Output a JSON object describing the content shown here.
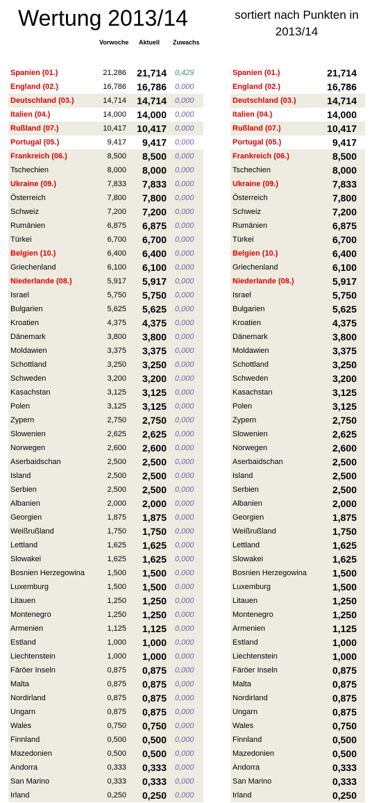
{
  "header": {
    "title": "Wertung 2013/14",
    "subtitle": "sortiert nach Punkten in 2013/14",
    "col_prev": "Vorwoche",
    "col_current": "Aktuell",
    "col_gain": "Zuwachs"
  },
  "colors": {
    "highlight": "#e00000",
    "shade": "#eeece1",
    "gain_zero": "#7060a8",
    "gain_positive": "#2ea050"
  },
  "left_rows": [
    {
      "name": "Spanien (01.)",
      "prev": "21,286",
      "cur": "21,714",
      "gain": "0,429",
      "hl": true,
      "shade": false,
      "up": true
    },
    {
      "name": "England (02.)",
      "prev": "16,786",
      "cur": "16,786",
      "gain": "0,000",
      "hl": true,
      "shade": false
    },
    {
      "name": "Deutschland (03.)",
      "prev": "14,714",
      "cur": "14,714",
      "gain": "0,000",
      "hl": true,
      "shade": true
    },
    {
      "name": "Italien (04.)",
      "prev": "14,000",
      "cur": "14,000",
      "gain": "0,000",
      "hl": true,
      "shade": false
    },
    {
      "name": "Rußland (07.)",
      "prev": "10,417",
      "cur": "10,417",
      "gain": "0,000",
      "hl": true,
      "shade": true
    },
    {
      "name": "Portugal (05.)",
      "prev": "9,417",
      "cur": "9,417",
      "gain": "0,000",
      "hl": true,
      "shade": false
    },
    {
      "name": "Frankreich (06.)",
      "prev": "8,500",
      "cur": "8,500",
      "gain": "0,000",
      "hl": true,
      "shade": true
    },
    {
      "name": "Tschechien",
      "prev": "8,000",
      "cur": "8,000",
      "gain": "0,000",
      "hl": false,
      "shade": true
    },
    {
      "name": "Ukraine (09.)",
      "prev": "7,833",
      "cur": "7,833",
      "gain": "0,000",
      "hl": true,
      "shade": true
    },
    {
      "name": "Österreich",
      "prev": "7,800",
      "cur": "7,800",
      "gain": "0,000",
      "hl": false,
      "shade": true
    },
    {
      "name": "Schweiz",
      "prev": "7,200",
      "cur": "7,200",
      "gain": "0,000",
      "hl": false,
      "shade": true
    },
    {
      "name": "Rumänien",
      "prev": "6,875",
      "cur": "6,875",
      "gain": "0,000",
      "hl": false,
      "shade": true
    },
    {
      "name": "Türkei",
      "prev": "6,700",
      "cur": "6,700",
      "gain": "0,000",
      "hl": false,
      "shade": true
    },
    {
      "name": "Belgien (10.)",
      "prev": "6,400",
      "cur": "6,400",
      "gain": "0,000",
      "hl": true,
      "shade": true
    },
    {
      "name": "Griechenland",
      "prev": "6,100",
      "cur": "6,100",
      "gain": "0,000",
      "hl": false,
      "shade": true
    },
    {
      "name": "Niederlande (08.)",
      "prev": "5,917",
      "cur": "5,917",
      "gain": "0,000",
      "hl": true,
      "shade": true
    },
    {
      "name": "Israel",
      "prev": "5,750",
      "cur": "5,750",
      "gain": "0,000",
      "hl": false,
      "shade": true
    },
    {
      "name": "Bulgarien",
      "prev": "5,625",
      "cur": "5,625",
      "gain": "0,000",
      "hl": false,
      "shade": true
    },
    {
      "name": "Kroatien",
      "prev": "4,375",
      "cur": "4,375",
      "gain": "0,000",
      "hl": false,
      "shade": true
    },
    {
      "name": "Dänemark",
      "prev": "3,800",
      "cur": "3,800",
      "gain": "0,000",
      "hl": false,
      "shade": true
    },
    {
      "name": "Moldawien",
      "prev": "3,375",
      "cur": "3,375",
      "gain": "0,000",
      "hl": false,
      "shade": true
    },
    {
      "name": "Schottland",
      "prev": "3,250",
      "cur": "3,250",
      "gain": "0,000",
      "hl": false,
      "shade": true
    },
    {
      "name": "Schweden",
      "prev": "3,200",
      "cur": "3,200",
      "gain": "0,000",
      "hl": false,
      "shade": true
    },
    {
      "name": "Kasachstan",
      "prev": "3,125",
      "cur": "3,125",
      "gain": "0,000",
      "hl": false,
      "shade": true
    },
    {
      "name": "Polen",
      "prev": "3,125",
      "cur": "3,125",
      "gain": "0,000",
      "hl": false,
      "shade": true
    },
    {
      "name": "Zypern",
      "prev": "2,750",
      "cur": "2,750",
      "gain": "0,000",
      "hl": false,
      "shade": true
    },
    {
      "name": "Slowenien",
      "prev": "2,625",
      "cur": "2,625",
      "gain": "0,000",
      "hl": false,
      "shade": true
    },
    {
      "name": "Norwegen",
      "prev": "2,600",
      "cur": "2,600",
      "gain": "0,000",
      "hl": false,
      "shade": true
    },
    {
      "name": "Aserbaidschan",
      "prev": "2,500",
      "cur": "2,500",
      "gain": "0,000",
      "hl": false,
      "shade": true
    },
    {
      "name": "Island",
      "prev": "2,500",
      "cur": "2,500",
      "gain": "0,000",
      "hl": false,
      "shade": true
    },
    {
      "name": "Serbien",
      "prev": "2,500",
      "cur": "2,500",
      "gain": "0,000",
      "hl": false,
      "shade": true
    },
    {
      "name": "Albanien",
      "prev": "2,000",
      "cur": "2,000",
      "gain": "0,000",
      "hl": false,
      "shade": true
    },
    {
      "name": "Georgien",
      "prev": "1,875",
      "cur": "1,875",
      "gain": "0,000",
      "hl": false,
      "shade": true
    },
    {
      "name": "Weißrußland",
      "prev": "1,750",
      "cur": "1,750",
      "gain": "0,000",
      "hl": false,
      "shade": true
    },
    {
      "name": "Lettland",
      "prev": "1,625",
      "cur": "1,625",
      "gain": "0,000",
      "hl": false,
      "shade": true
    },
    {
      "name": "Slowakei",
      "prev": "1,625",
      "cur": "1,625",
      "gain": "0,000",
      "hl": false,
      "shade": true
    },
    {
      "name": "Bosnien Herzegowina",
      "prev": "1,500",
      "cur": "1,500",
      "gain": "0,000",
      "hl": false,
      "shade": true
    },
    {
      "name": "Luxemburg",
      "prev": "1,500",
      "cur": "1,500",
      "gain": "0,000",
      "hl": false,
      "shade": true
    },
    {
      "name": "Litauen",
      "prev": "1,250",
      "cur": "1,250",
      "gain": "0,000",
      "hl": false,
      "shade": true
    },
    {
      "name": "Montenegro",
      "prev": "1,250",
      "cur": "1,250",
      "gain": "0,000",
      "hl": false,
      "shade": true
    },
    {
      "name": "Armenien",
      "prev": "1,125",
      "cur": "1,125",
      "gain": "0,000",
      "hl": false,
      "shade": true
    },
    {
      "name": "Estland",
      "prev": "1,000",
      "cur": "1,000",
      "gain": "0,000",
      "hl": false,
      "shade": true
    },
    {
      "name": "Liechtenstein",
      "prev": "1,000",
      "cur": "1,000",
      "gain": "0,000",
      "hl": false,
      "shade": true
    },
    {
      "name": "Färöer Inseln",
      "prev": "0,875",
      "cur": "0,875",
      "gain": "0,000",
      "hl": false,
      "shade": true
    },
    {
      "name": "Malta",
      "prev": "0,875",
      "cur": "0,875",
      "gain": "0,000",
      "hl": false,
      "shade": true
    },
    {
      "name": "Nordirland",
      "prev": "0,875",
      "cur": "0,875",
      "gain": "0,000",
      "hl": false,
      "shade": true
    },
    {
      "name": "Ungarn",
      "prev": "0,875",
      "cur": "0,875",
      "gain": "0,000",
      "hl": false,
      "shade": true
    },
    {
      "name": "Wales",
      "prev": "0,750",
      "cur": "0,750",
      "gain": "0,000",
      "hl": false,
      "shade": true
    },
    {
      "name": "Finnland",
      "prev": "0,500",
      "cur": "0,500",
      "gain": "0,000",
      "hl": false,
      "shade": true
    },
    {
      "name": "Mazedonien",
      "prev": "0,500",
      "cur": "0,500",
      "gain": "0,000",
      "hl": false,
      "shade": true
    },
    {
      "name": "Andorra",
      "prev": "0,333",
      "cur": "0,333",
      "gain": "0,000",
      "hl": false,
      "shade": true
    },
    {
      "name": "San Marino",
      "prev": "0,333",
      "cur": "0,333",
      "gain": "0,000",
      "hl": false,
      "shade": true
    },
    {
      "name": "Irland",
      "prev": "0,250",
      "cur": "0,250",
      "gain": "0,000",
      "hl": false,
      "shade": true
    }
  ],
  "right_rows": [
    {
      "name": "Spanien (01.)",
      "pts": "21,714",
      "hl": true,
      "shade": false
    },
    {
      "name": "England (02.)",
      "pts": "16,786",
      "hl": true,
      "shade": false
    },
    {
      "name": "Deutschland (03.)",
      "pts": "14,714",
      "hl": true,
      "shade": true
    },
    {
      "name": "Italien (04.)",
      "pts": "14,000",
      "hl": true,
      "shade": false
    },
    {
      "name": "Rußland (07.)",
      "pts": "10,417",
      "hl": true,
      "shade": true
    },
    {
      "name": "Portugal (05.)",
      "pts": "9,417",
      "hl": true,
      "shade": false
    },
    {
      "name": "Frankreich (06.)",
      "pts": "8,500",
      "hl": true,
      "shade": true
    },
    {
      "name": "Tschechien",
      "pts": "8,000",
      "hl": false,
      "shade": true
    },
    {
      "name": "Ukraine (09.)",
      "pts": "7,833",
      "hl": true,
      "shade": true
    },
    {
      "name": "Österreich",
      "pts": "7,800",
      "hl": false,
      "shade": true
    },
    {
      "name": "Schweiz",
      "pts": "7,200",
      "hl": false,
      "shade": true
    },
    {
      "name": "Rumänien",
      "pts": "6,875",
      "hl": false,
      "shade": true
    },
    {
      "name": "Türkei",
      "pts": "6,700",
      "hl": false,
      "shade": true
    },
    {
      "name": "Belgien (10.)",
      "pts": "6,400",
      "hl": true,
      "shade": true
    },
    {
      "name": "Griechenland",
      "pts": "6,100",
      "hl": false,
      "shade": true
    },
    {
      "name": "Niederlande (08.)",
      "pts": "5,917",
      "hl": true,
      "shade": true
    },
    {
      "name": "Israel",
      "pts": "5,750",
      "hl": false,
      "shade": true
    },
    {
      "name": "Bulgarien",
      "pts": "5,625",
      "hl": false,
      "shade": true
    },
    {
      "name": "Kroatien",
      "pts": "4,375",
      "hl": false,
      "shade": true
    },
    {
      "name": "Dänemark",
      "pts": "3,800",
      "hl": false,
      "shade": true
    },
    {
      "name": "Moldawien",
      "pts": "3,375",
      "hl": false,
      "shade": true
    },
    {
      "name": "Schottland",
      "pts": "3,250",
      "hl": false,
      "shade": true
    },
    {
      "name": "Schweden",
      "pts": "3,200",
      "hl": false,
      "shade": true
    },
    {
      "name": "Kasachstan",
      "pts": "3,125",
      "hl": false,
      "shade": true
    },
    {
      "name": "Polen",
      "pts": "3,125",
      "hl": false,
      "shade": true
    },
    {
      "name": "Zypern",
      "pts": "2,750",
      "hl": false,
      "shade": true
    },
    {
      "name": "Slowenien",
      "pts": "2,625",
      "hl": false,
      "shade": true
    },
    {
      "name": "Norwegen",
      "pts": "2,600",
      "hl": false,
      "shade": true
    },
    {
      "name": "Aserbaidschan",
      "pts": "2,500",
      "hl": false,
      "shade": true
    },
    {
      "name": "Island",
      "pts": "2,500",
      "hl": false,
      "shade": true
    },
    {
      "name": "Serbien",
      "pts": "2,500",
      "hl": false,
      "shade": true
    },
    {
      "name": "Albanien",
      "pts": "2,000",
      "hl": false,
      "shade": true
    },
    {
      "name": "Georgien",
      "pts": "1,875",
      "hl": false,
      "shade": true
    },
    {
      "name": "Weißrußland",
      "pts": "1,750",
      "hl": false,
      "shade": true
    },
    {
      "name": "Lettland",
      "pts": "1,625",
      "hl": false,
      "shade": true
    },
    {
      "name": "Slowakei",
      "pts": "1,625",
      "hl": false,
      "shade": true
    },
    {
      "name": "Bosnien Herzegowina",
      "pts": "1,500",
      "hl": false,
      "shade": true
    },
    {
      "name": "Luxemburg",
      "pts": "1,500",
      "hl": false,
      "shade": true
    },
    {
      "name": "Litauen",
      "pts": "1,250",
      "hl": false,
      "shade": true
    },
    {
      "name": "Montenegro",
      "pts": "1,250",
      "hl": false,
      "shade": true
    },
    {
      "name": "Armenien",
      "pts": "1,125",
      "hl": false,
      "shade": true
    },
    {
      "name": "Estland",
      "pts": "1,000",
      "hl": false,
      "shade": true
    },
    {
      "name": "Liechtenstein",
      "pts": "1,000",
      "hl": false,
      "shade": true
    },
    {
      "name": "Färöer Inseln",
      "pts": "0,875",
      "hl": false,
      "shade": true
    },
    {
      "name": "Malta",
      "pts": "0,875",
      "hl": false,
      "shade": true
    },
    {
      "name": "Nordirland",
      "pts": "0,875",
      "hl": false,
      "shade": true
    },
    {
      "name": "Ungarn",
      "pts": "0,875",
      "hl": false,
      "shade": true
    },
    {
      "name": "Wales",
      "pts": "0,750",
      "hl": false,
      "shade": true
    },
    {
      "name": "Finnland",
      "pts": "0,500",
      "hl": false,
      "shade": true
    },
    {
      "name": "Mazedonien",
      "pts": "0,500",
      "hl": false,
      "shade": true
    },
    {
      "name": "Andorra",
      "pts": "0,333",
      "hl": false,
      "shade": true
    },
    {
      "name": "San Marino",
      "pts": "0,333",
      "hl": false,
      "shade": true
    },
    {
      "name": "Irland",
      "pts": "0,250",
      "hl": false,
      "shade": true
    }
  ]
}
